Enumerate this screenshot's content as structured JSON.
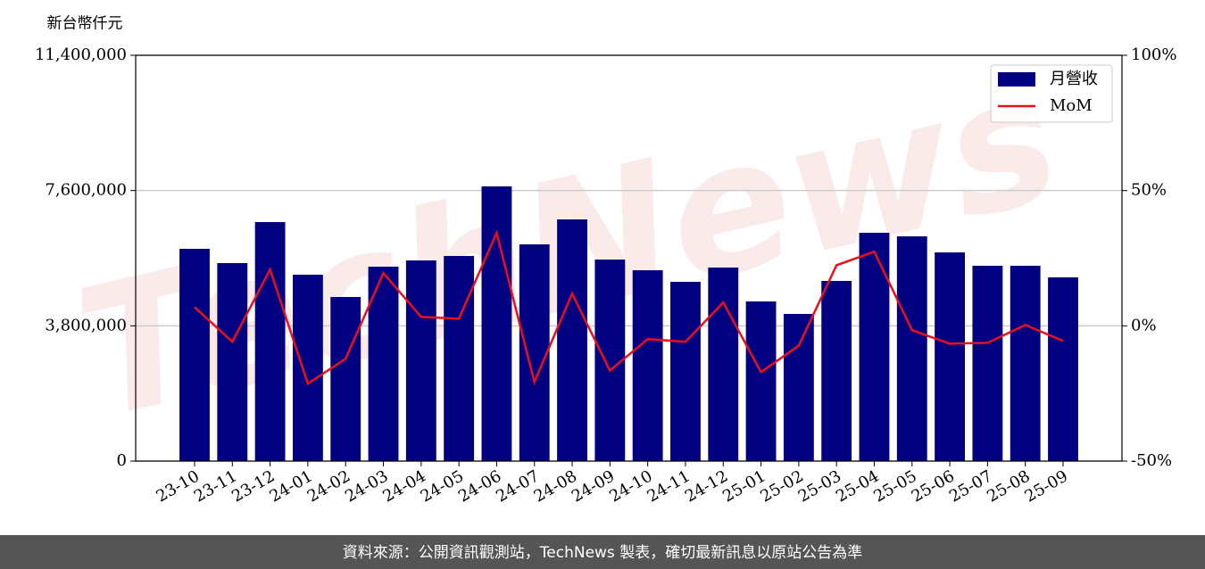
{
  "chart_data": {
    "type": "bar",
    "y_label": "新台幣仟元",
    "watermark": "TechNews",
    "footer": "資料來源：公開資訊觀測站，TechNews 製表，確切最新訊息以原站公告為準",
    "categories": [
      "23-10",
      "23-11",
      "23-12",
      "24-01",
      "24-02",
      "24-03",
      "24-04",
      "24-05",
      "24-06",
      "24-07",
      "24-08",
      "24-09",
      "24-10",
      "24-11",
      "24-12",
      "25-01",
      "25-02",
      "25-03",
      "25-04",
      "25-05",
      "25-06",
      "25-07",
      "25-08",
      "25-09"
    ],
    "series": [
      {
        "name": "月營收",
        "type": "bar",
        "color": "#000080",
        "values": [
          5963000,
          5562000,
          6714000,
          5236000,
          4610000,
          5462000,
          5637000,
          5762000,
          7717000,
          6088000,
          6790000,
          5662000,
          5362000,
          5036000,
          5437000,
          4485000,
          4134000,
          5061000,
          6414000,
          6314000,
          5863000,
          5487000,
          5487000,
          5161000
        ]
      },
      {
        "name": "MoM",
        "type": "line",
        "axis": "y2",
        "color": "#e8101a",
        "values": [
          6.9,
          -5.9,
          20.8,
          -21.4,
          -12.2,
          19.5,
          3.3,
          2.6,
          34.3,
          -20.8,
          11.9,
          -16.5,
          -4.9,
          -5.9,
          8.6,
          -17.1,
          -7.3,
          22.4,
          27.4,
          -1.6,
          -6.6,
          -6.3,
          0.3,
          -5.6
        ]
      }
    ],
    "ylim": [
      0,
      11400000
    ],
    "yticks": [
      0,
      {
        "value": 3800000,
        "label": "3,800,000"
      },
      {
        "value": 7600000,
        "label": "7,600,000"
      },
      {
        "value": 11400000,
        "label": "11,400,000"
      }
    ],
    "y2lim": [
      -50,
      100
    ],
    "y2ticks": [
      {
        "value": -50,
        "label": "-50%"
      },
      {
        "value": 0,
        "label": "0%"
      },
      {
        "value": 50,
        "label": "50%"
      },
      {
        "value": 100,
        "label": "100%"
      }
    ],
    "grid": true,
    "legend": "upper-right"
  }
}
